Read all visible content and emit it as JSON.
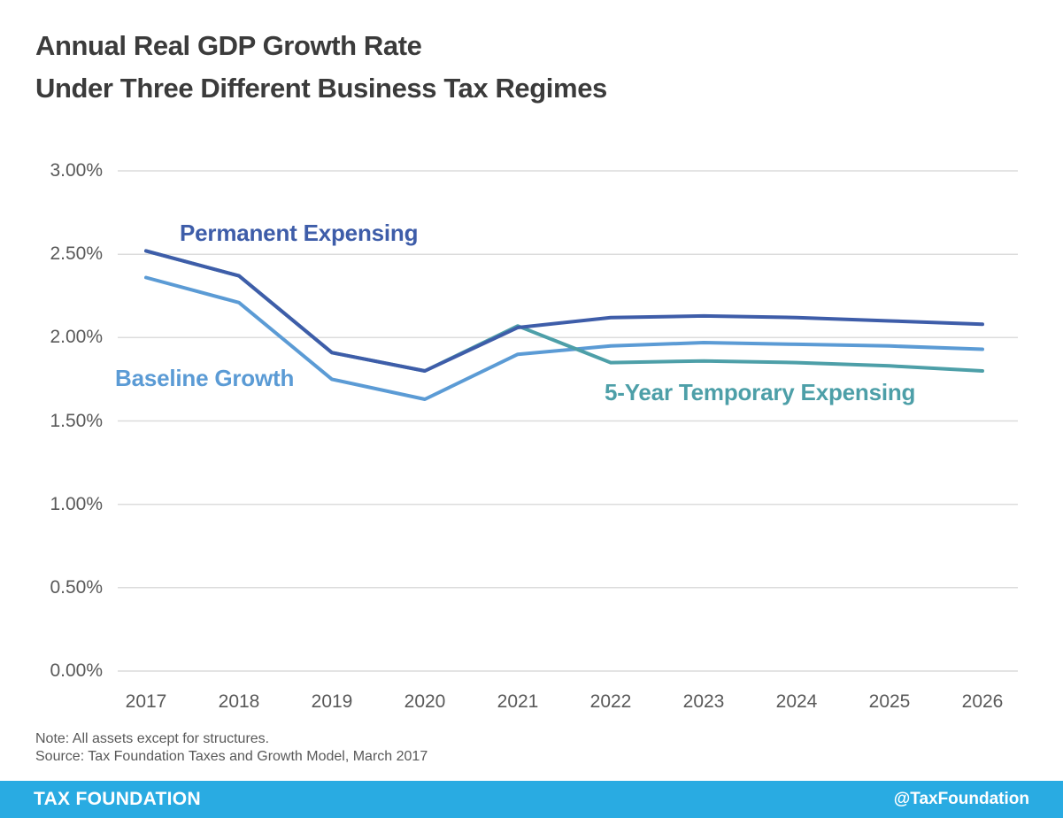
{
  "title": {
    "line1": "Annual Real GDP Growth Rate",
    "line2": "Under Three Different Business Tax Regimes"
  },
  "chart_data": {
    "type": "line",
    "title": "Annual Real GDP Growth Rate Under Three Different Business Tax Regimes",
    "title_lines": [
      "Annual Real GDP Growth Rate",
      "Under Three Different Business Tax Regimes"
    ],
    "x": [
      "2017",
      "2018",
      "2019",
      "2020",
      "2021",
      "2022",
      "2023",
      "2024",
      "2025",
      "2026"
    ],
    "xlabel": "",
    "ylabel": "",
    "ylim": [
      0,
      3
    ],
    "ytick_values": [
      3,
      2.5,
      2,
      1.5,
      1,
      0.5,
      0
    ],
    "ytick_labels": [
      "3.00%",
      "2.50%",
      "2.00%",
      "1.50%",
      "1.00%",
      "0.50%",
      "0.00%"
    ],
    "grid": "horizontal",
    "legend_position": "inline-labels-on-chart",
    "series": [
      {
        "name": "Baseline Growth",
        "color": "#5B9BD5",
        "values": [
          2.36,
          2.21,
          1.75,
          1.63,
          1.9,
          1.95,
          1.97,
          1.96,
          1.95,
          1.93
        ]
      },
      {
        "name": "5-Year Temporary Expensing",
        "color": "#4D9FA8",
        "values": [
          2.52,
          2.37,
          1.91,
          1.8,
          2.07,
          1.85,
          1.86,
          1.85,
          1.83,
          1.8
        ]
      },
      {
        "name": "Permanent Expensing",
        "color": "#3E5DA9",
        "values": [
          2.52,
          2.37,
          1.91,
          1.8,
          2.06,
          2.12,
          2.13,
          2.12,
          2.1,
          2.08
        ]
      }
    ]
  },
  "notes": {
    "note_text": "Note: All assets except for structures.",
    "source_text": "Source: Tax Foundation Taxes and Growth Model, March 2017"
  },
  "footer": {
    "brand": "TAX FOUNDATION",
    "handle": "@TaxFoundation",
    "background": "#29ABE2",
    "text_color": "#FFFFFF"
  },
  "colors": {
    "title_text": "#3B3B3B",
    "axis_text": "#595959",
    "gridline": "#DCDCDC",
    "background": "#FFFFFF"
  }
}
